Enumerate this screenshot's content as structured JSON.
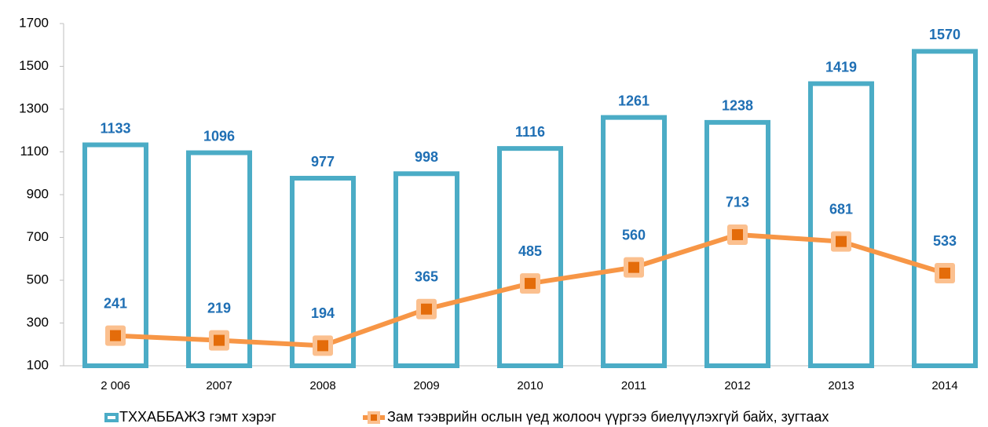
{
  "chart_data": {
    "type": "bar_line",
    "categories": [
      "2 006",
      "2007",
      "2008",
      "2009",
      "2010",
      "2011",
      "2012",
      "2013",
      "2014"
    ],
    "series": [
      {
        "name": "ТХХАББАЖЗ гэмт хэрэг",
        "type": "bar",
        "color": "#4bacc6",
        "values": [
          1133,
          1096,
          977,
          998,
          1116,
          1261,
          1238,
          1419,
          1570
        ]
      },
      {
        "name": "Зам тээврийн ослын үед жолооч үүргээ биелүүлэхгүй байх, зугтаах",
        "type": "line",
        "color": "#f79646",
        "values": [
          241,
          219,
          194,
          365,
          485,
          560,
          713,
          681,
          533
        ]
      }
    ],
    "ylim": [
      100,
      1700
    ],
    "yticks": [
      100,
      300,
      500,
      700,
      900,
      1100,
      1300,
      1500,
      1700
    ],
    "legend": "bottom"
  }
}
